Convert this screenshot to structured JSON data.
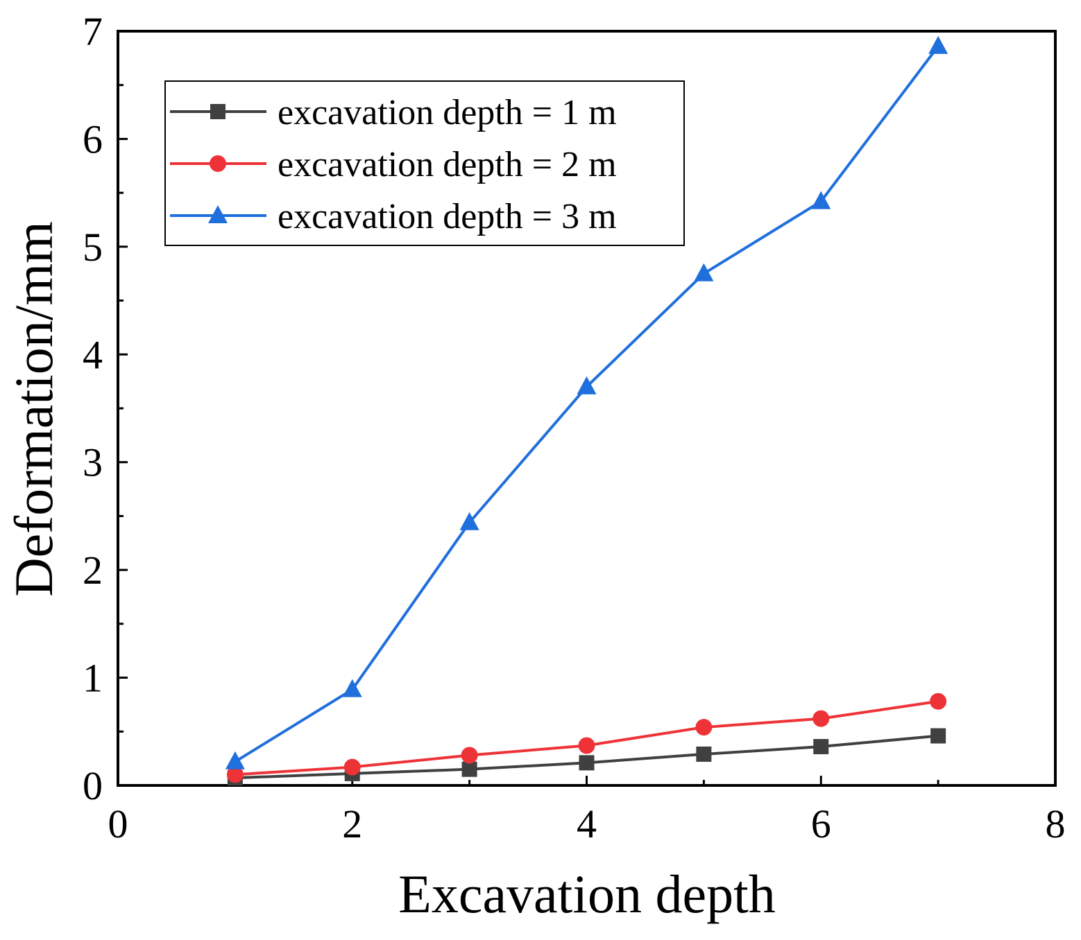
{
  "chart_data": {
    "type": "line",
    "title": "",
    "xlabel": "Excavation depth",
    "ylabel": "Deformation/mm",
    "xlim": [
      0,
      8
    ],
    "ylim": [
      0,
      7
    ],
    "xticks": [
      0,
      2,
      4,
      6,
      8
    ],
    "yticks": [
      0,
      1,
      2,
      3,
      4,
      5,
      6,
      7
    ],
    "x": [
      1,
      2,
      3,
      4,
      5,
      6,
      7
    ],
    "legend_position": "top-left",
    "series": [
      {
        "name": "excavation depth = 1 m",
        "marker": "square",
        "color": "#404040",
        "values": [
          0.07,
          0.11,
          0.15,
          0.21,
          0.29,
          0.36,
          0.46
        ]
      },
      {
        "name": "excavation depth = 2 m",
        "marker": "circle",
        "color": "#ee3338",
        "values": [
          0.1,
          0.17,
          0.28,
          0.37,
          0.54,
          0.62,
          0.78
        ]
      },
      {
        "name": "excavation depth = 3 m",
        "marker": "triangle",
        "color": "#1f6fdc",
        "values": [
          0.22,
          0.89,
          2.44,
          3.7,
          4.75,
          5.42,
          6.86
        ]
      }
    ]
  }
}
